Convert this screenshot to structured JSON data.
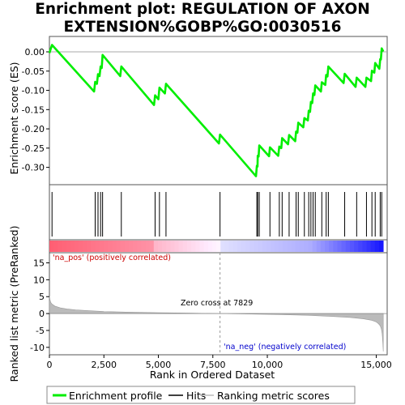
{
  "title_line1": "Enrichment plot: REGULATION OF AXON",
  "title_line2": "EXTENSION%GOBP%GO:0030516",
  "ylabel_top": "Enrichment score (ES)",
  "ylabel_bottom": "Ranked list metric (PreRanked)",
  "xlabel": "Rank in Ordered Dataset",
  "annotations": {
    "pos": "'na_pos' (positively correlated)",
    "neg": "'na_neg' (negatively correlated)",
    "zero": "Zero cross at 7829"
  },
  "legend": {
    "enrichment": "Enrichment profile",
    "hits": "Hits",
    "ranking": "Ranking metric scores"
  },
  "colors": {
    "enrichment_line": "#00ee00",
    "hits": "#000000",
    "metric_fill": "#bbbbbb",
    "pos_band": "#ff0000",
    "neg_band": "#0000ff"
  },
  "chart_data": {
    "type": "line",
    "x_range": [
      0,
      15500
    ],
    "es_ylim": [
      -0.345,
      0.04
    ],
    "es_yticks": [
      0.0,
      -0.05,
      -0.1,
      -0.15,
      -0.2,
      -0.25,
      -0.3
    ],
    "es_ytick_labels": [
      "0.00",
      "-0.05",
      "-0.10",
      "-0.15",
      "-0.20",
      "-0.25",
      "-0.30"
    ],
    "metric_ylim": [
      -12.2,
      18
    ],
    "metric_yticks": [
      15,
      10,
      5,
      0,
      -5,
      -10
    ],
    "xticks": [
      0,
      2500,
      5000,
      7500,
      10000,
      15000
    ],
    "xtick_labels": [
      "0",
      "2,500",
      "5,000",
      "7,500",
      "10,000",
      "15,000"
    ],
    "zero_cross": 7829,
    "total_genes": 15320,
    "hits": [
      120,
      2100,
      2230,
      2350,
      2440,
      3300,
      4850,
      5050,
      5350,
      7829,
      9520,
      9560,
      9630,
      10120,
      10550,
      10680,
      11000,
      11320,
      11420,
      11700,
      11900,
      12000,
      12100,
      12200,
      12500,
      12700,
      12800,
      13550,
      14100,
      14550,
      14800,
      14950,
      15180,
      15250
    ],
    "es_profile": {
      "x": [
        0,
        120,
        2050,
        2100,
        2180,
        2230,
        2300,
        2350,
        2400,
        2440,
        3250,
        3300,
        4800,
        4850,
        5000,
        5050,
        5300,
        5350,
        7780,
        7829,
        9480,
        9520,
        9550,
        9560,
        9600,
        9630,
        10080,
        10120,
        10500,
        10550,
        10640,
        10680,
        10950,
        11000,
        11280,
        11320,
        11380,
        11420,
        11650,
        11700,
        11860,
        11900,
        11960,
        12000,
        12060,
        12100,
        12160,
        12200,
        12460,
        12500,
        12660,
        12700,
        12760,
        12800,
        13500,
        13550,
        14050,
        14100,
        14500,
        14550,
        14760,
        14800,
        14910,
        14950,
        15140,
        15180,
        15210,
        15250,
        15320
      ],
      "y": [
        -0.003,
        0.018,
        -0.103,
        -0.078,
        -0.083,
        -0.058,
        -0.063,
        -0.038,
        -0.042,
        -0.008,
        -0.063,
        -0.038,
        -0.138,
        -0.113,
        -0.123,
        -0.093,
        -0.108,
        -0.083,
        -0.238,
        -0.215,
        -0.323,
        -0.296,
        -0.298,
        -0.27,
        -0.272,
        -0.243,
        -0.271,
        -0.248,
        -0.27,
        -0.246,
        -0.25,
        -0.224,
        -0.24,
        -0.216,
        -0.232,
        -0.207,
        -0.21,
        -0.184,
        -0.196,
        -0.172,
        -0.178,
        -0.153,
        -0.156,
        -0.13,
        -0.133,
        -0.108,
        -0.112,
        -0.087,
        -0.103,
        -0.079,
        -0.086,
        -0.06,
        -0.064,
        -0.038,
        -0.081,
        -0.057,
        -0.091,
        -0.067,
        -0.091,
        -0.067,
        -0.076,
        -0.049,
        -0.054,
        -0.029,
        -0.044,
        -0.019,
        -0.02,
        0.009,
        0.001
      ]
    },
    "metric_profile": {
      "x": [
        0,
        25,
        60,
        120,
        250,
        500,
        800,
        1200,
        1800,
        2500,
        3500,
        5000,
        6500,
        7829,
        9000,
        10500,
        12000,
        13000,
        13800,
        14400,
        14800,
        15000,
        15100,
        15180,
        15230,
        15270,
        15300,
        15320
      ],
      "y": [
        5.2,
        4.1,
        3.3,
        2.8,
        2.2,
        1.7,
        1.35,
        1.1,
        0.85,
        0.6,
        0.42,
        0.25,
        0.12,
        0.0,
        -0.12,
        -0.3,
        -0.55,
        -0.85,
        -1.15,
        -1.55,
        -2.0,
        -2.5,
        -3.0,
        -3.6,
        -4.5,
        -6.0,
        -8.5,
        -11.2
      ]
    }
  }
}
